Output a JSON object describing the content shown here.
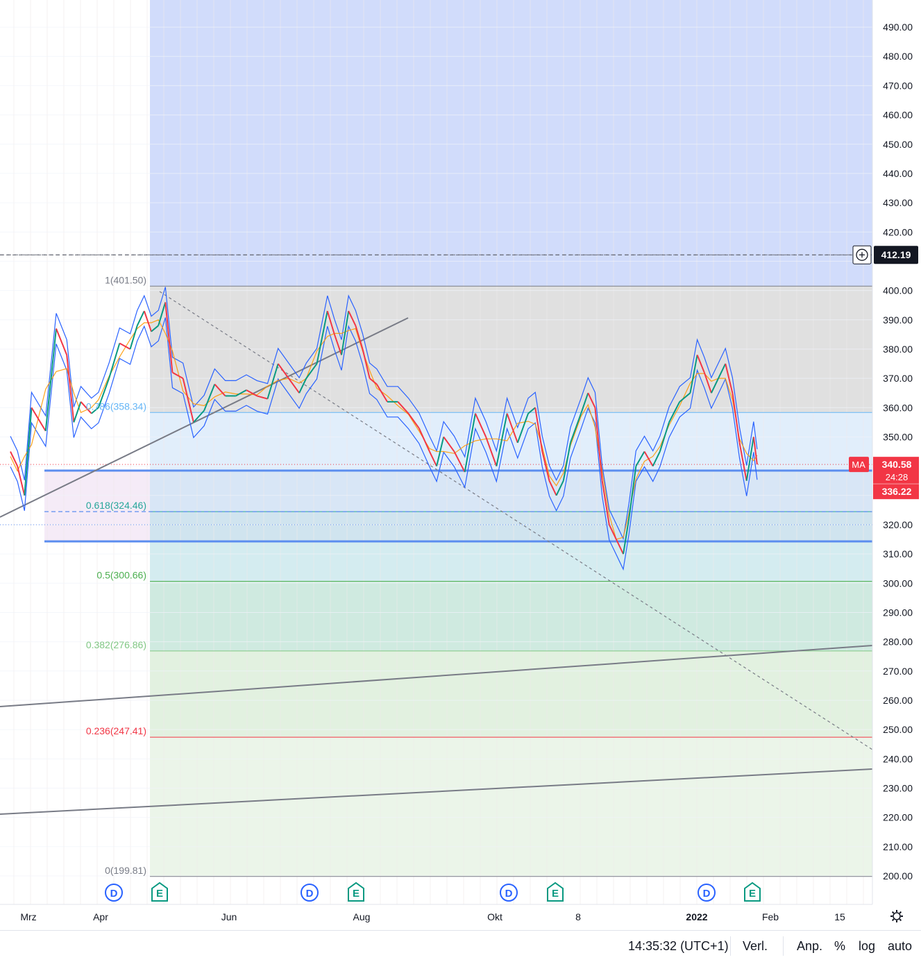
{
  "chart_data": {
    "type": "line",
    "y_axis": {
      "ticks": [
        "490.00",
        "480.00",
        "470.00",
        "460.00",
        "450.00",
        "440.00",
        "430.00",
        "420.00",
        "400.00",
        "390.00",
        "380.00",
        "370.00",
        "360.00",
        "350.00",
        "320.00",
        "310.00",
        "300.00",
        "290.00",
        "280.00",
        "270.00",
        "260.00",
        "250.00",
        "240.00",
        "230.00",
        "220.00",
        "210.00",
        "200.00"
      ],
      "ylim": [
        196,
        500
      ],
      "scale": "linear"
    },
    "x_axis": {
      "ticks": [
        "Mrz",
        "Apr",
        "Jun",
        "Aug",
        "Okt",
        "8",
        "2022",
        "Feb",
        "15"
      ]
    },
    "fibonacci": [
      {
        "label": "1(401.50)",
        "value": 401.5,
        "color": "#787b86",
        "fill": "#e0e0e0"
      },
      {
        "label": "0.786(358.34)",
        "value": 358.34,
        "color": "#64b5f6",
        "fill": "#e1eefb"
      },
      {
        "label": "0.618(324.46)",
        "value": 324.46,
        "color": "#26a69a",
        "fill": "#d4ecf0"
      },
      {
        "label": "0.5(300.66)",
        "value": 300.66,
        "color": "#4caf50",
        "fill": "#cfeae0"
      },
      {
        "label": "0.382(276.86)",
        "value": 276.86,
        "color": "#81c784",
        "fill": "#e2f1e0"
      },
      {
        "label": "0.236(247.41)",
        "value": 247.41,
        "color": "#f23645",
        "fill": "#ebf5e9"
      },
      {
        "label": "0(199.81)",
        "value": 199.81,
        "color": "#787b86",
        "fill": "#fbd9d9"
      }
    ],
    "horizontal_lines": [
      {
        "value": 338.5,
        "style": "solid",
        "color": "#5b8def"
      },
      {
        "value": 324.46,
        "style": "dashed",
        "color": "#5b8def"
      },
      {
        "value": 314.3,
        "style": "solid",
        "color": "#5b8def"
      },
      {
        "value": 412.19,
        "style": "dashed",
        "color": "#787b86"
      }
    ],
    "price_labels": {
      "crosshair": "412.19",
      "indicator_name": "MA",
      "last_price": "340.58",
      "countdown": "24:28",
      "ma_value": "336.22"
    },
    "price_series": [
      {
        "t": 0.0,
        "v": 345
      },
      {
        "t": 0.01,
        "v": 340
      },
      {
        "t": 0.02,
        "v": 330
      },
      {
        "t": 0.03,
        "v": 360
      },
      {
        "t": 0.05,
        "v": 352
      },
      {
        "t": 0.065,
        "v": 387
      },
      {
        "t": 0.08,
        "v": 378
      },
      {
        "t": 0.09,
        "v": 355
      },
      {
        "t": 0.1,
        "v": 362
      },
      {
        "t": 0.115,
        "v": 358
      },
      {
        "t": 0.125,
        "v": 360
      },
      {
        "t": 0.14,
        "v": 370
      },
      {
        "t": 0.155,
        "v": 382
      },
      {
        "t": 0.17,
        "v": 380
      },
      {
        "t": 0.18,
        "v": 388
      },
      {
        "t": 0.19,
        "v": 393
      },
      {
        "t": 0.2,
        "v": 386
      },
      {
        "t": 0.21,
        "v": 388
      },
      {
        "t": 0.22,
        "v": 396
      },
      {
        "t": 0.23,
        "v": 372
      },
      {
        "t": 0.245,
        "v": 370
      },
      {
        "t": 0.26,
        "v": 355
      },
      {
        "t": 0.275,
        "v": 359
      },
      {
        "t": 0.29,
        "v": 368
      },
      {
        "t": 0.305,
        "v": 364
      },
      {
        "t": 0.32,
        "v": 364
      },
      {
        "t": 0.335,
        "v": 366
      },
      {
        "t": 0.35,
        "v": 364
      },
      {
        "t": 0.365,
        "v": 363
      },
      {
        "t": 0.38,
        "v": 375
      },
      {
        "t": 0.395,
        "v": 370
      },
      {
        "t": 0.41,
        "v": 365
      },
      {
        "t": 0.42,
        "v": 370
      },
      {
        "t": 0.435,
        "v": 375
      },
      {
        "t": 0.45,
        "v": 393
      },
      {
        "t": 0.46,
        "v": 385
      },
      {
        "t": 0.47,
        "v": 378
      },
      {
        "t": 0.48,
        "v": 393
      },
      {
        "t": 0.49,
        "v": 388
      },
      {
        "t": 0.5,
        "v": 380
      },
      {
        "t": 0.51,
        "v": 370
      },
      {
        "t": 0.52,
        "v": 368
      },
      {
        "t": 0.535,
        "v": 362
      },
      {
        "t": 0.55,
        "v": 362
      },
      {
        "t": 0.565,
        "v": 358
      },
      {
        "t": 0.58,
        "v": 353
      },
      {
        "t": 0.595,
        "v": 345
      },
      {
        "t": 0.605,
        "v": 340
      },
      {
        "t": 0.615,
        "v": 350
      },
      {
        "t": 0.63,
        "v": 345
      },
      {
        "t": 0.645,
        "v": 338
      },
      {
        "t": 0.66,
        "v": 358
      },
      {
        "t": 0.675,
        "v": 350
      },
      {
        "t": 0.69,
        "v": 340
      },
      {
        "t": 0.705,
        "v": 358
      },
      {
        "t": 0.72,
        "v": 348
      },
      {
        "t": 0.735,
        "v": 358
      },
      {
        "t": 0.745,
        "v": 360
      },
      {
        "t": 0.755,
        "v": 345
      },
      {
        "t": 0.765,
        "v": 335
      },
      {
        "t": 0.775,
        "v": 330
      },
      {
        "t": 0.785,
        "v": 335
      },
      {
        "t": 0.795,
        "v": 348
      },
      {
        "t": 0.81,
        "v": 358
      },
      {
        "t": 0.82,
        "v": 365
      },
      {
        "t": 0.83,
        "v": 360
      },
      {
        "t": 0.84,
        "v": 335
      },
      {
        "t": 0.85,
        "v": 320
      },
      {
        "t": 0.86,
        "v": 315
      },
      {
        "t": 0.87,
        "v": 310
      },
      {
        "t": 0.878,
        "v": 322
      },
      {
        "t": 0.888,
        "v": 340
      },
      {
        "t": 0.9,
        "v": 345
      },
      {
        "t": 0.912,
        "v": 340
      },
      {
        "t": 0.922,
        "v": 345
      },
      {
        "t": 0.935,
        "v": 355
      },
      {
        "t": 0.95,
        "v": 362
      },
      {
        "t": 0.965,
        "v": 365
      },
      {
        "t": 0.975,
        "v": 378
      },
      {
        "t": 0.985,
        "v": 372
      },
      {
        "t": 0.995,
        "v": 365
      },
      {
        "t": 1.005,
        "v": 370
      },
      {
        "t": 1.015,
        "v": 375
      },
      {
        "t": 1.025,
        "v": 365
      },
      {
        "t": 1.035,
        "v": 348
      },
      {
        "t": 1.045,
        "v": 335
      },
      {
        "t": 1.055,
        "v": 350
      },
      {
        "t": 1.06,
        "v": 340.58
      }
    ],
    "markers": [
      {
        "type": "D",
        "color": "#2962ff"
      },
      {
        "type": "E",
        "color": "#089981"
      },
      {
        "type": "D",
        "color": "#2962ff"
      },
      {
        "type": "E",
        "color": "#089981"
      },
      {
        "type": "D",
        "color": "#2962ff"
      },
      {
        "type": "E",
        "color": "#089981"
      },
      {
        "type": "D",
        "color": "#2962ff"
      },
      {
        "type": "E",
        "color": "#089981"
      }
    ],
    "grid": true,
    "colors": {
      "up": "#089981",
      "down": "#f23645",
      "envelope": "#2962ff",
      "fast_ma": "#ff9800",
      "trendline": "#787b86",
      "upper_bg": "#d1dcfb",
      "accent_label": "#f23645"
    }
  },
  "statusbar": {
    "time": "14:35:32 (UTC+1)",
    "volume": "Verl.",
    "adjust": "Anp.",
    "percent": "%",
    "log": "log",
    "auto": "auto",
    "settings_icon": "gear-icon"
  }
}
